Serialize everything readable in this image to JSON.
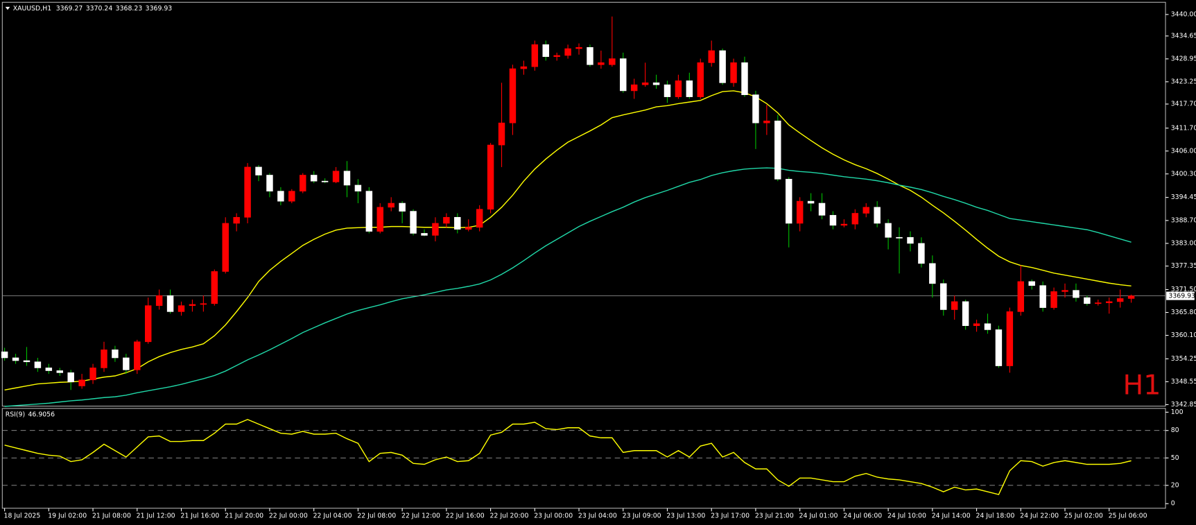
{
  "chart_data": [
    {
      "type": "candlestick",
      "title": "XAUUSD,H1",
      "watermark": "H1",
      "watermark_color": "#e01010",
      "up_color": "#ff0000",
      "down_color": "#ffffff",
      "wick_up_color": "#ff0000",
      "wick_down_color": "#00c000",
      "price_line_color": "#8a8a8a",
      "open": [
        3356,
        3354.5,
        3353.8,
        3353.5,
        3352,
        3351.3,
        3350.8,
        3347.5,
        3349,
        3352,
        3356.5,
        3354.5,
        3351.5,
        3358.5,
        3367.5,
        3370,
        3366,
        3367.5,
        3367.8,
        3368,
        3376,
        3388,
        3389.5,
        3402,
        3400,
        3396,
        3393.5,
        3396,
        3400,
        3398.5,
        3398.3,
        3401,
        3397.5,
        3396,
        3386,
        3392,
        3393,
        3391,
        3385.5,
        3385,
        3388,
        3389.5,
        3386.5,
        3387,
        3391.5,
        3407.5,
        3413,
        3426.5,
        3427,
        3432.5,
        3429.5,
        3429.8,
        3431.5,
        3431.8,
        3427.5,
        3427.5,
        3429,
        3421,
        3422.5,
        3423,
        3422.5,
        3419.5,
        3423.5,
        3419.5,
        3428,
        3431,
        3423,
        3428,
        3420,
        3413,
        3413.5,
        3399,
        3388,
        3393.5,
        3393,
        3390,
        3387.5,
        3387.8,
        3390.5,
        3392,
        3388,
        3384.5,
        3384.5,
        3383,
        3378,
        3373,
        3366.5,
        3368.5,
        3362.5,
        3363,
        3361.5,
        3352.5,
        3366,
        3373.5,
        3372.5,
        3367,
        3371,
        3371.3,
        3369.5,
        3368,
        3368.2,
        3368.5,
        3369.27
      ],
      "high": [
        3357,
        3355.5,
        3357.2,
        3354.5,
        3353,
        3352,
        3351.5,
        3350.5,
        3353,
        3358.5,
        3357.5,
        3355.5,
        3359,
        3369.5,
        3371.5,
        3371.5,
        3368.5,
        3369,
        3370,
        3376.5,
        3389.5,
        3390.5,
        3403,
        3402.5,
        3400.5,
        3397,
        3396.5,
        3400.5,
        3401,
        3399.2,
        3402,
        3403.5,
        3399,
        3397,
        3393,
        3394.5,
        3393.5,
        3391.5,
        3386.5,
        3389.5,
        3390.5,
        3390.5,
        3389,
        3392.5,
        3408,
        3423,
        3427.5,
        3428.5,
        3433.5,
        3433.5,
        3430.5,
        3432.5,
        3432.8,
        3432.5,
        3431,
        3439.5,
        3430.5,
        3424,
        3428,
        3425,
        3423.5,
        3425,
        3425.5,
        3429,
        3433.5,
        3431.5,
        3429,
        3429.5,
        3421,
        3417.5,
        3415,
        3399.5,
        3394.5,
        3395.5,
        3395.5,
        3391,
        3389,
        3391.5,
        3393,
        3393.5,
        3389,
        3387,
        3386,
        3384.5,
        3380,
        3374,
        3370,
        3369,
        3364,
        3365.5,
        3362.5,
        3367,
        3377.5,
        3374,
        3373.5,
        3372,
        3373,
        3373,
        3370,
        3369,
        3369.5,
        3371.5,
        3370.24
      ],
      "low": [
        3353.8,
        3353,
        3352.5,
        3351,
        3350.5,
        3350,
        3346.5,
        3346.8,
        3348,
        3351,
        3353.5,
        3350.5,
        3350.5,
        3358,
        3366.5,
        3365.5,
        3365,
        3366,
        3366,
        3367.5,
        3375.5,
        3386,
        3388,
        3398.5,
        3394.5,
        3392.5,
        3393,
        3395.5,
        3398,
        3398,
        3398,
        3394.5,
        3393,
        3385.5,
        3385.5,
        3391,
        3388,
        3385,
        3384.8,
        3383.5,
        3387,
        3385.5,
        3386,
        3386,
        3390.5,
        3402,
        3410,
        3425,
        3426,
        3428.5,
        3428.5,
        3429,
        3430,
        3427,
        3426.5,
        3427,
        3420.5,
        3419,
        3422,
        3421.5,
        3418,
        3419,
        3419,
        3419,
        3427,
        3422.5,
        3422,
        3419.5,
        3406.5,
        3410,
        3398.5,
        3382,
        3386,
        3391,
        3389,
        3386.5,
        3387,
        3386.5,
        3389.5,
        3387,
        3381.5,
        3375.5,
        3381,
        3377,
        3369.5,
        3365,
        3364,
        3361.5,
        3361,
        3360.5,
        3352,
        3350.8,
        3365,
        3371.5,
        3366,
        3366.5,
        3369.5,
        3368.5,
        3367.5,
        3367.5,
        3365.5,
        3367,
        3368.23
      ],
      "close": [
        3354.5,
        3353.8,
        3353.5,
        3352,
        3351.3,
        3350.8,
        3348.5,
        3349,
        3352,
        3356.5,
        3354.5,
        3351.5,
        3358.5,
        3367.5,
        3370,
        3366,
        3367.5,
        3367.8,
        3368,
        3376,
        3388,
        3389.5,
        3402,
        3400,
        3396,
        3393.5,
        3396,
        3400,
        3398.5,
        3398.3,
        3401,
        3397.5,
        3396,
        3386,
        3392,
        3393,
        3391,
        3385.5,
        3385,
        3388,
        3389.5,
        3386.5,
        3387,
        3391.5,
        3407.5,
        3413,
        3426.5,
        3427,
        3432.5,
        3429.5,
        3429.8,
        3431.5,
        3431.8,
        3427.5,
        3428,
        3429,
        3421,
        3422.5,
        3423,
        3422.5,
        3419.5,
        3423.5,
        3419.5,
        3428,
        3431,
        3423,
        3428,
        3420,
        3413,
        3413.5,
        3399,
        3388,
        3393.5,
        3393,
        3390,
        3387.5,
        3387.8,
        3390.5,
        3392,
        3388,
        3384.5,
        3384.5,
        3383,
        3378,
        3373,
        3366.5,
        3368.5,
        3362.5,
        3363,
        3361.5,
        3352.5,
        3366,
        3373.5,
        3372.5,
        3367,
        3371,
        3371.3,
        3369.5,
        3368,
        3368.2,
        3368.5,
        3369.27,
        3369.93
      ],
      "moving_averages": [
        {
          "color": "#ffff00",
          "values": [
            3346.5,
            3347,
            3347.5,
            3348,
            3348.2,
            3348.4,
            3348.5,
            3348.7,
            3349.2,
            3349.7,
            3350,
            3350.8,
            3351.8,
            3353.5,
            3354.8,
            3355.8,
            3356.6,
            3357.2,
            3358,
            3360,
            3362.7,
            3366,
            3369.5,
            3373.5,
            3376.3,
            3378.5,
            3380.5,
            3382.5,
            3384,
            3385.3,
            3386.3,
            3386.8,
            3386.9,
            3387,
            3387,
            3387.2,
            3387.2,
            3387.1,
            3387,
            3387,
            3387,
            3386.9,
            3387,
            3387.5,
            3389.5,
            3392,
            3395,
            3398.5,
            3401.5,
            3404,
            3406.2,
            3408.2,
            3409.6,
            3411,
            3412.5,
            3414.3,
            3415,
            3415.6,
            3416.2,
            3417,
            3417.3,
            3417.8,
            3418.2,
            3418.6,
            3419.8,
            3420.8,
            3421,
            3420.5,
            3419.5,
            3417.8,
            3415.5,
            3412.5,
            3410.5,
            3408.6,
            3406.8,
            3405.2,
            3403.8,
            3402.6,
            3401.6,
            3400.4,
            3399,
            3397.5,
            3396.2,
            3394.5,
            3392.5,
            3390.6,
            3388.5,
            3386.3,
            3384,
            3381.8,
            3379.8,
            3378.4,
            3377.5,
            3377,
            3376.3,
            3375.6,
            3375.1,
            3374.6,
            3374.1,
            3373.6,
            3373.1,
            3372.7,
            3372.4
          ]
        },
        {
          "color": "#20d8a8",
          "values": [
            3342.4,
            3342.6,
            3342.8,
            3343,
            3343.2,
            3343.5,
            3343.8,
            3344,
            3344.3,
            3344.6,
            3344.8,
            3345.2,
            3345.8,
            3346.3,
            3346.8,
            3347.3,
            3347.9,
            3348.6,
            3349.3,
            3350.1,
            3351.2,
            3352.6,
            3354,
            3355.2,
            3356.5,
            3357.9,
            3359.3,
            3360.8,
            3362,
            3363.2,
            3364.3,
            3365.4,
            3366.3,
            3367,
            3367.7,
            3368.5,
            3369.2,
            3369.7,
            3370.2,
            3370.8,
            3371.4,
            3371.8,
            3372.3,
            3372.9,
            3373.9,
            3375.3,
            3376.9,
            3378.7,
            3380.6,
            3382.4,
            3384,
            3385.6,
            3387.2,
            3388.5,
            3389.7,
            3390.9,
            3392,
            3393.3,
            3394.4,
            3395.3,
            3396.2,
            3397.2,
            3398.2,
            3398.9,
            3399.9,
            3400.6,
            3401.1,
            3401.5,
            3401.7,
            3401.8,
            3401.7,
            3401.2,
            3400.9,
            3400.7,
            3400.4,
            3400,
            3399.6,
            3399.3,
            3399,
            3398.6,
            3398.1,
            3397.5,
            3397,
            3396.4,
            3395.6,
            3394.7,
            3393.9,
            3393,
            3392,
            3391.2,
            3390.2,
            3389.2,
            3388.8,
            3388.4,
            3388,
            3387.6,
            3387.2,
            3386.8,
            3386.4,
            3385.7,
            3384.9,
            3384.1,
            3383.3
          ]
        }
      ],
      "ylim": [
        3342.47,
        3442.66
      ],
      "yticks": [
        {
          "value": 3440,
          "label": "3440.00"
        },
        3434.65,
        3428.95,
        3423.25,
        {
          "value": 3417.7,
          "label": "3417.70"
        },
        {
          "value": 3411.7,
          "label": "3411.70"
        },
        {
          "value": 3406,
          "label": "3406.00"
        },
        {
          "value": 3400.3,
          "label": "3400.30"
        },
        3394.45,
        {
          "value": 3388.7,
          "label": "3388.70"
        },
        {
          "value": 3383,
          "label": "3383.00"
        },
        3377.35,
        {
          "value": 3371.5,
          "label": "3371.50"
        },
        {
          "value": 3365.8,
          "label": "3365.80"
        },
        {
          "value": 3360.1,
          "label": "3360.10"
        },
        3354.25,
        3348.55,
        3342.85
      ]
    },
    {
      "type": "line",
      "title": "RSI(9)",
      "color": "#ffff00",
      "level_color": "#9a9a9a",
      "categories": [
        "18 Jul 2025",
        null,
        null,
        null,
        "19 Jul 02:00",
        null,
        null,
        null,
        "21 Jul 08:00",
        null,
        null,
        null,
        "21 Jul 12:00",
        null,
        null,
        null,
        "21 Jul 16:00",
        null,
        null,
        null,
        "21 Jul 20:00",
        null,
        null,
        null,
        "22 Jul 00:00",
        null,
        null,
        null,
        "22 Jul 04:00",
        null,
        null,
        null,
        "22 Jul 08:00",
        null,
        null,
        null,
        "22 Jul 12:00",
        null,
        null,
        null,
        "22 Jul 16:00",
        null,
        null,
        null,
        "22 Jul 20:00",
        null,
        null,
        null,
        "23 Jul 00:00",
        null,
        null,
        null,
        "23 Jul 04:00",
        null,
        null,
        null,
        "23 Jul 09:00",
        null,
        null,
        null,
        "23 Jul 13:00",
        null,
        null,
        null,
        "23 Jul 17:00",
        null,
        null,
        null,
        "23 Jul 21:00",
        null,
        null,
        null,
        "24 Jul 01:00",
        null,
        null,
        null,
        "24 Jul 06:00",
        null,
        null,
        null,
        "24 Jul 10:00",
        null,
        null,
        null,
        "24 Jul 14:00",
        null,
        null,
        null,
        "24 Jul 18:00",
        null,
        null,
        null,
        "24 Jul 22:00",
        null,
        null,
        null,
        "25 Jul 02:00",
        null,
        null,
        null,
        "25 Jul 06:00",
        null,
        null
      ],
      "values": [
        64,
        61,
        58,
        55,
        53,
        52,
        46,
        48,
        56,
        65,
        58,
        51,
        62,
        73,
        74,
        68,
        68,
        69,
        69,
        77,
        87,
        87,
        92,
        87,
        82,
        77,
        76,
        79,
        76,
        76,
        77,
        71,
        66,
        46,
        55,
        56,
        53,
        44,
        43,
        48,
        51,
        46,
        47,
        55,
        75,
        78,
        87,
        87,
        89,
        82,
        81,
        83,
        83,
        74,
        72,
        72,
        56,
        58,
        58,
        58,
        51,
        58,
        51,
        63,
        66,
        51,
        56,
        45,
        38,
        38,
        26,
        19,
        28,
        28,
        26,
        24,
        24,
        30,
        33,
        29,
        27,
        26,
        24,
        22,
        18,
        13,
        18,
        15,
        16,
        13,
        10,
        36,
        47,
        46,
        41,
        45,
        47,
        45,
        43,
        43,
        43,
        44,
        46.9056
      ],
      "ylim": [
        -5,
        103.3
      ],
      "yticks": [
        0,
        20,
        50,
        80,
        100
      ],
      "levels": [
        80,
        50,
        20
      ]
    }
  ]
}
